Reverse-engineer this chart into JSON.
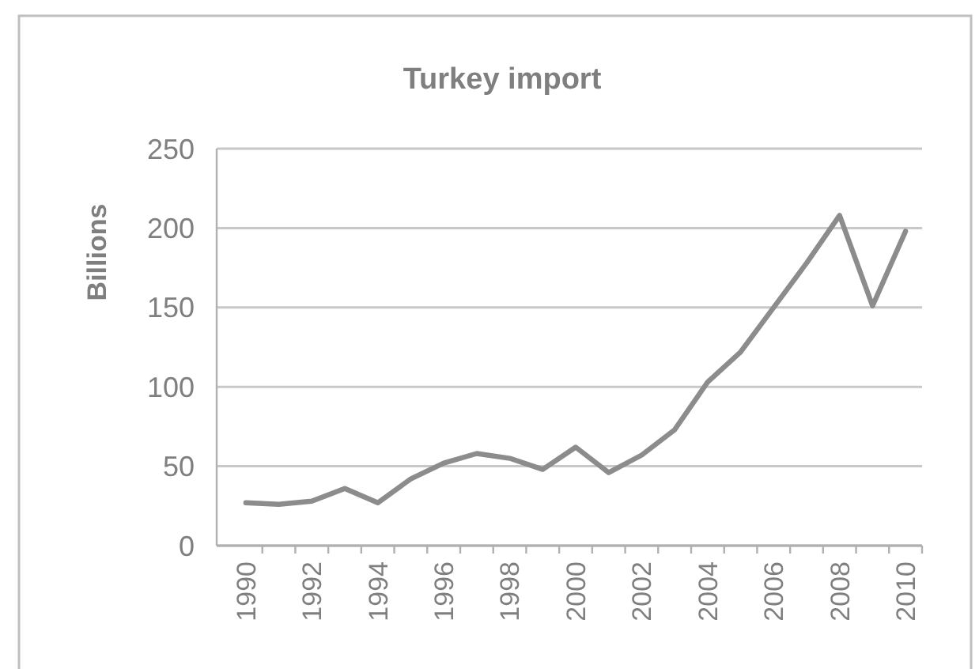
{
  "chart_data": {
    "type": "line",
    "title": "Turkey import",
    "ylabel": "Billions",
    "categories": [
      "1990",
      null,
      "1992",
      null,
      "1994",
      null,
      "1996",
      null,
      "1998",
      null,
      "2000",
      null,
      "2002",
      null,
      "2004",
      null,
      "2006",
      null,
      "2008",
      null,
      "2010"
    ],
    "series": [
      {
        "color": "#8c8c8c",
        "values": [
          27,
          26,
          28,
          36,
          27,
          42,
          52,
          58,
          55,
          48,
          62,
          46,
          57,
          73,
          103,
          122,
          150,
          178,
          208,
          151,
          198
        ]
      }
    ],
    "ylim": [
      0,
      250
    ],
    "yticks": [
      0,
      50,
      100,
      150,
      200,
      250
    ],
    "grid": "y",
    "line_style": "solid"
  }
}
